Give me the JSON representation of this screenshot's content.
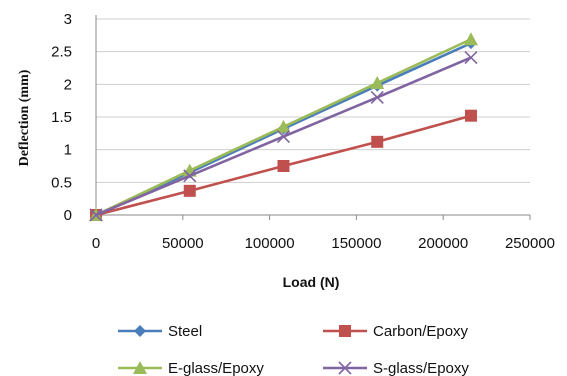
{
  "chart_data": {
    "type": "line",
    "title": "",
    "xlabel": "Load (N)",
    "ylabel": "Deflection (mm)",
    "xlim": [
      0,
      250000
    ],
    "ylim": [
      0,
      3
    ],
    "xticks": [
      "0",
      "50000",
      "100000",
      "150000",
      "200000",
      "250000"
    ],
    "yticks": [
      "0",
      "0.5",
      "1",
      "1.5",
      "2",
      "2.5",
      "3"
    ],
    "grid": "horizontal",
    "legend_position": "bottom",
    "series": [
      {
        "name": "Steel",
        "color": "#4a7ebb",
        "marker": "diamond",
        "x": [
          0,
          54000,
          108000,
          162000,
          216000
        ],
        "y": [
          0,
          0.65,
          1.32,
          1.98,
          2.63
        ]
      },
      {
        "name": "Carbon/Epoxy",
        "color": "#c0504d",
        "marker": "square",
        "x": [
          0,
          54000,
          108000,
          162000,
          216000
        ],
        "y": [
          0,
          0.37,
          0.75,
          1.12,
          1.52
        ]
      },
      {
        "name": "E-glass/Epoxy",
        "color": "#9bbb59",
        "marker": "triangle",
        "x": [
          0,
          54000,
          108000,
          162000,
          216000
        ],
        "y": [
          0,
          0.68,
          1.35,
          2.02,
          2.69
        ]
      },
      {
        "name": "S-glass/Epoxy",
        "color": "#8064a2",
        "marker": "x",
        "x": [
          0,
          54000,
          108000,
          162000,
          216000
        ],
        "y": [
          0,
          0.6,
          1.2,
          1.8,
          2.41
        ]
      }
    ]
  }
}
